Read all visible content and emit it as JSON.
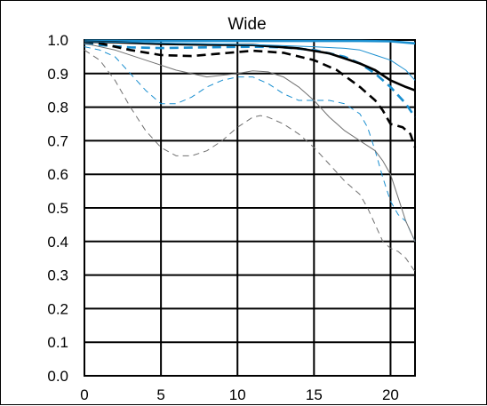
{
  "chart_data": {
    "type": "line",
    "title": "Wide",
    "xlabel": "",
    "ylabel": "",
    "xlim": [
      0,
      21.6
    ],
    "ylim": [
      0,
      1.0
    ],
    "xticks": [
      0,
      5,
      10,
      15,
      20
    ],
    "yticks": [
      0.0,
      0.1,
      0.2,
      0.3,
      0.4,
      0.5,
      0.6,
      0.7,
      0.8,
      0.9,
      1.0
    ],
    "xtick_labels": [
      "0",
      "5",
      "10",
      "15",
      "20"
    ],
    "ytick_labels": [
      "0.0",
      "0.1",
      "0.2",
      "0.3",
      "0.4",
      "0.5",
      "0.6",
      "0.7",
      "0.8",
      "0.9",
      "1.0"
    ],
    "grid": true,
    "legend": "none",
    "series": [
      {
        "color": "#1a8fd0",
        "style": "solid",
        "weight": "thick",
        "x": [
          0,
          2,
          5,
          8,
          12,
          15,
          18,
          20,
          21.6
        ],
        "y": [
          0.998,
          0.998,
          0.997,
          0.997,
          0.997,
          0.997,
          0.997,
          0.996,
          0.99
        ]
      },
      {
        "color": "#1a8fd0",
        "style": "dashed",
        "weight": "thick",
        "x": [
          0,
          1,
          3,
          5,
          8,
          11,
          13,
          15,
          17,
          18,
          19,
          20,
          21,
          21.6
        ],
        "y": [
          0.99,
          0.985,
          0.978,
          0.976,
          0.978,
          0.98,
          0.978,
          0.97,
          0.95,
          0.93,
          0.9,
          0.86,
          0.81,
          0.77
        ]
      },
      {
        "color": "#000000",
        "style": "solid",
        "weight": "thick",
        "x": [
          0,
          2,
          5,
          8,
          11,
          14,
          16,
          18,
          19,
          20,
          21,
          21.6
        ],
        "y": [
          0.995,
          0.993,
          0.988,
          0.986,
          0.985,
          0.975,
          0.96,
          0.93,
          0.91,
          0.88,
          0.86,
          0.85
        ]
      },
      {
        "color": "#000000",
        "style": "dashed",
        "weight": "thick",
        "x": [
          0,
          1,
          3,
          5,
          7,
          9,
          11,
          13,
          15,
          16.5,
          18,
          19,
          19.5,
          20,
          20.8,
          21.3,
          21.6
        ],
        "y": [
          0.995,
          0.99,
          0.97,
          0.955,
          0.952,
          0.96,
          0.968,
          0.962,
          0.94,
          0.91,
          0.86,
          0.82,
          0.79,
          0.75,
          0.74,
          0.72,
          0.68
        ]
      },
      {
        "color": "#1a8fd0",
        "style": "solid",
        "weight": "thin",
        "x": [
          0,
          3,
          6,
          9,
          12,
          15,
          17,
          18,
          19,
          20,
          21,
          21.6
        ],
        "y": [
          0.995,
          0.993,
          0.99,
          0.988,
          0.985,
          0.98,
          0.975,
          0.97,
          0.955,
          0.94,
          0.91,
          0.88
        ]
      },
      {
        "color": "#1a8fd0",
        "style": "dashed",
        "weight": "thin",
        "x": [
          0,
          1,
          2,
          3,
          4,
          5,
          6,
          7,
          8,
          9,
          10,
          11,
          12,
          13,
          14,
          15,
          16,
          17,
          18,
          18.5,
          19,
          19.5,
          20,
          20.5,
          21,
          21.6
        ],
        "y": [
          0.98,
          0.97,
          0.95,
          0.9,
          0.85,
          0.81,
          0.81,
          0.83,
          0.86,
          0.88,
          0.89,
          0.89,
          0.87,
          0.84,
          0.82,
          0.82,
          0.82,
          0.81,
          0.78,
          0.74,
          0.67,
          0.59,
          0.52,
          0.48,
          0.46,
          0.4
        ]
      },
      {
        "color": "#707070",
        "style": "solid",
        "weight": "thin",
        "x": [
          0,
          2,
          4,
          6,
          8,
          10,
          11,
          12,
          13,
          14,
          15,
          16,
          17,
          18,
          19,
          19.5,
          20,
          20.5,
          21,
          21.6
        ],
        "y": [
          0.99,
          0.97,
          0.94,
          0.91,
          0.89,
          0.9,
          0.908,
          0.905,
          0.89,
          0.86,
          0.82,
          0.77,
          0.73,
          0.7,
          0.67,
          0.64,
          0.6,
          0.53,
          0.46,
          0.4
        ]
      },
      {
        "color": "#707070",
        "style": "dashed",
        "weight": "thin",
        "x": [
          0,
          1,
          2,
          3,
          4,
          5,
          6,
          7,
          8,
          9,
          10,
          11,
          11.5,
          12,
          13,
          14,
          15,
          16,
          17,
          18,
          18.5,
          19,
          19.5,
          20,
          20.5,
          21,
          21.6
        ],
        "y": [
          0.97,
          0.94,
          0.88,
          0.8,
          0.73,
          0.68,
          0.655,
          0.655,
          0.67,
          0.7,
          0.74,
          0.77,
          0.775,
          0.77,
          0.75,
          0.72,
          0.68,
          0.63,
          0.58,
          0.54,
          0.5,
          0.45,
          0.4,
          0.38,
          0.37,
          0.35,
          0.31
        ]
      }
    ]
  }
}
